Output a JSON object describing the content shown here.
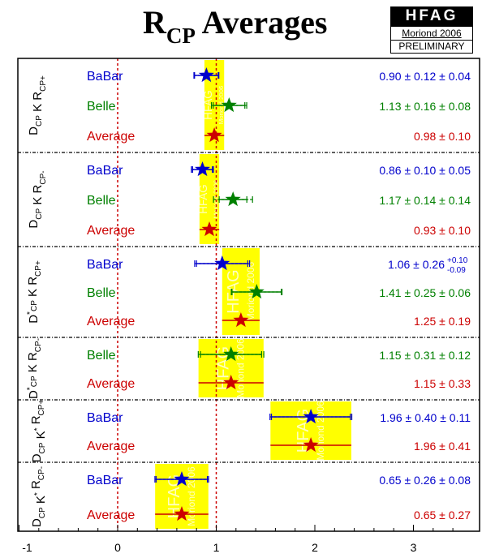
{
  "title": {
    "main": "R",
    "sub": "CP",
    "rest": " Averages"
  },
  "badge": {
    "name": "HFAG",
    "conference": "Moriond 2006",
    "status": "PRELIMINARY"
  },
  "chart_data": {
    "type": "scatter",
    "title": "RCP Averages",
    "xlim": [
      -1,
      3.7
    ],
    "xticks": [
      -1,
      0,
      1,
      2,
      3
    ],
    "reference_lines": [
      0,
      1
    ],
    "colors": {
      "BaBar": "#0000cc",
      "Belle": "#008000",
      "Average": "#cc0000",
      "band": "#ffff00"
    },
    "groups": [
      {
        "label": "DCP K RCP+",
        "rows": [
          {
            "exp": "BaBar",
            "value": 0.9,
            "stat": 0.12,
            "syst": 0.04,
            "text": "0.90 ± 0.12 ± 0.04"
          },
          {
            "exp": "Belle",
            "value": 1.13,
            "stat": 0.16,
            "syst": 0.08,
            "text": "1.13 ± 0.16 ± 0.08"
          },
          {
            "exp": "Average",
            "value": 0.98,
            "err": 0.1,
            "text": "0.98 ± 0.10"
          }
        ]
      },
      {
        "label": "DCP K RCP-",
        "rows": [
          {
            "exp": "BaBar",
            "value": 0.86,
            "stat": 0.1,
            "syst": 0.05,
            "text": "0.86 ± 0.10 ± 0.05"
          },
          {
            "exp": "Belle",
            "value": 1.17,
            "stat": 0.14,
            "syst": 0.14,
            "text": "1.17 ± 0.14 ± 0.14"
          },
          {
            "exp": "Average",
            "value": 0.93,
            "err": 0.1,
            "text": "0.93 ± 0.10"
          }
        ]
      },
      {
        "label": "D*CP K RCP+",
        "rows": [
          {
            "exp": "BaBar",
            "value": 1.06,
            "stat": 0.26,
            "syst_plus": 0.1,
            "syst_minus": 0.09,
            "text": "1.06 ± 0.26",
            "sup": "+0.10",
            "sub": "-0.09"
          },
          {
            "exp": "Belle",
            "value": 1.41,
            "stat": 0.25,
            "syst": 0.06,
            "text": "1.41 ± 0.25 ± 0.06"
          },
          {
            "exp": "Average",
            "value": 1.25,
            "err": 0.19,
            "text": "1.25 ± 0.19"
          }
        ]
      },
      {
        "label": "D*CP K RCP-",
        "rows": [
          {
            "exp": "Belle",
            "value": 1.15,
            "stat": 0.31,
            "syst": 0.12,
            "text": "1.15 ± 0.31 ± 0.12"
          },
          {
            "exp": "Average",
            "value": 1.15,
            "err": 0.33,
            "text": "1.15 ± 0.33"
          }
        ]
      },
      {
        "label": "DCP K* RCP+",
        "rows": [
          {
            "exp": "BaBar",
            "value": 1.96,
            "stat": 0.4,
            "syst": 0.11,
            "text": "1.96 ± 0.40 ± 0.11"
          },
          {
            "exp": "Average",
            "value": 1.96,
            "err": 0.41,
            "text": "1.96 ± 0.41"
          }
        ]
      },
      {
        "label": "DCP K* RCP-",
        "rows": [
          {
            "exp": "BaBar",
            "value": 0.65,
            "stat": 0.26,
            "syst": 0.08,
            "text": "0.65 ± 0.26 ± 0.08"
          },
          {
            "exp": "Average",
            "value": 0.65,
            "err": 0.27,
            "text": "0.65 ± 0.27"
          }
        ]
      }
    ],
    "y_label_parts": [
      [
        [
          "D",
          ""
        ],
        [
          "CP",
          "sub"
        ],
        [
          " K R",
          ""
        ],
        [
          "CP+",
          "sub"
        ]
      ],
      [
        [
          "D",
          ""
        ],
        [
          "CP",
          "sub"
        ],
        [
          " K R",
          ""
        ],
        [
          "CP-",
          "sub"
        ]
      ],
      [
        [
          "D",
          ""
        ],
        [
          "*",
          "sup"
        ],
        [
          "CP",
          "sub"
        ],
        [
          " K R",
          ""
        ],
        [
          "CP+",
          "sub"
        ]
      ],
      [
        [
          "D",
          ""
        ],
        [
          "*",
          "sup"
        ],
        [
          "CP",
          "sub"
        ],
        [
          " K R",
          ""
        ],
        [
          "CP-",
          "sub"
        ]
      ],
      [
        [
          "D",
          ""
        ],
        [
          "CP",
          "sub"
        ],
        [
          " K",
          ""
        ],
        [
          "*",
          "sup"
        ],
        [
          " R",
          ""
        ],
        [
          "CP+",
          "sub"
        ]
      ],
      [
        [
          "D",
          ""
        ],
        [
          "CP",
          "sub"
        ],
        [
          " K",
          ""
        ],
        [
          "*",
          "sup"
        ],
        [
          " R",
          ""
        ],
        [
          "CP-",
          "sub"
        ]
      ]
    ],
    "watermark": {
      "main": "HFAG",
      "sub": "Moriond 2006"
    }
  }
}
